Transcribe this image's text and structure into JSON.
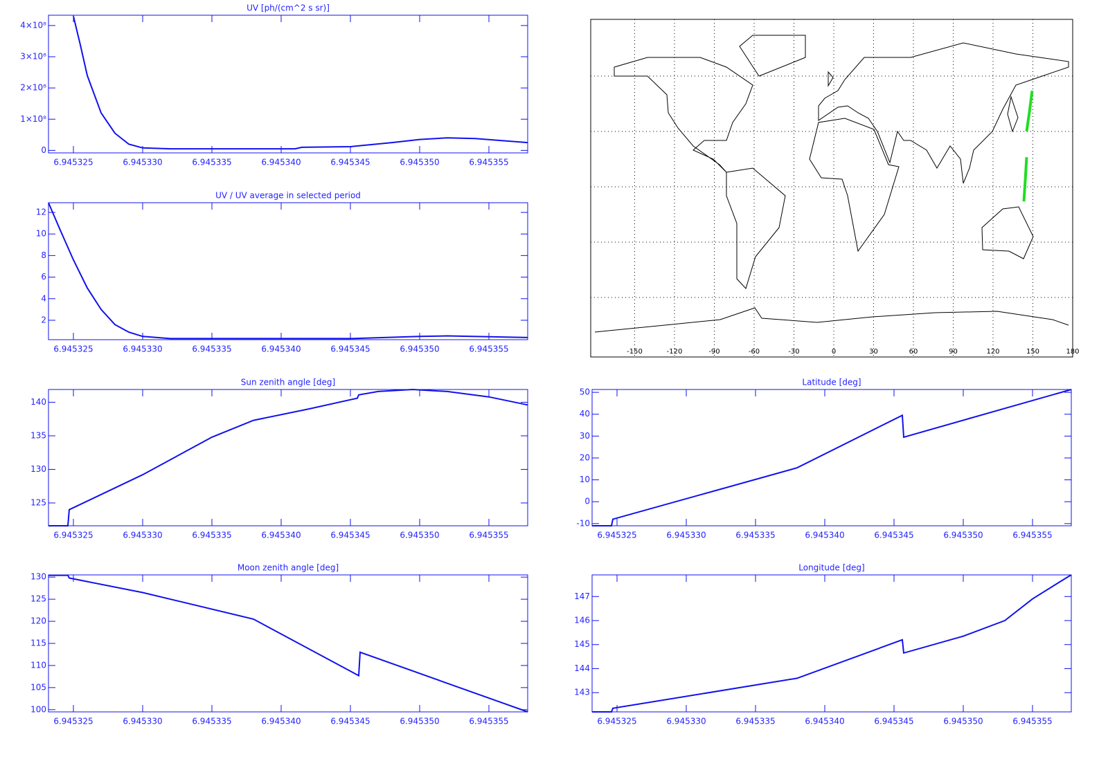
{
  "chart_data": [
    {
      "type": "line",
      "title": "UV [ph/(cm^2 s sr)]",
      "color": "#1010ee",
      "xlim": [
        6.9453232,
        6.9453578
      ],
      "ylim": [
        -8000000,
        433000000
      ],
      "xticks": [
        6.945325,
        {
          "value": 6.94533,
          "label": "6.945330"
        },
        6.945335,
        {
          "value": 6.94534,
          "label": "6.945340"
        },
        6.945345,
        {
          "value": 6.94535,
          "label": "6.945350"
        },
        6.945355
      ],
      "yticks": [
        0,
        {
          "value": 100000000,
          "label": "1×10⁸"
        },
        {
          "value": 200000000,
          "label": "2×10⁸"
        },
        {
          "value": 300000000,
          "label": "3×10⁸"
        },
        {
          "value": 400000000,
          "label": "4×10⁸"
        }
      ],
      "x": [
        6.945325,
        6.9453255,
        6.945326,
        6.945327,
        6.945328,
        6.945329,
        6.94533,
        6.945332,
        6.945341,
        6.9453415,
        6.945345,
        6.945348,
        6.94535,
        6.945352,
        6.945354,
        6.9453578
      ],
      "values": [
        430000000,
        338000000,
        240000000,
        120000000,
        55000000,
        20000000,
        8000000,
        5000000,
        5000000,
        10000000,
        12000000,
        25000000,
        35000000,
        40000000,
        38000000,
        25000000
      ]
    },
    {
      "type": "line",
      "title": "UV / UV average in selected period",
      "color": "#1010ee",
      "xlim": [
        6.9453232,
        6.9453578
      ],
      "ylim": [
        0.2,
        12.9
      ],
      "xticks": [
        6.945325,
        {
          "value": 6.94533,
          "label": "6.945330"
        },
        6.945335,
        {
          "value": 6.94534,
          "label": "6.945340"
        },
        6.945345,
        {
          "value": 6.94535,
          "label": "6.945350"
        },
        6.945355
      ],
      "yticks": [
        2,
        4,
        6,
        8,
        10,
        12
      ],
      "x": [
        6.9453232,
        6.945324,
        6.945325,
        6.945326,
        6.945327,
        6.945328,
        6.945329,
        6.94533,
        6.945332,
        6.945345,
        6.94535,
        6.945352,
        6.9453578
      ],
      "values": [
        12.9,
        10.5,
        7.6,
        5.0,
        3.0,
        1.6,
        0.9,
        0.5,
        0.3,
        0.3,
        0.5,
        0.55,
        0.4
      ]
    },
    {
      "type": "line",
      "title": "Sun zenith angle [deg]",
      "color": "#1010ee",
      "xlim": [
        6.9453232,
        6.9453578
      ],
      "ylim": [
        121.6,
        141.9
      ],
      "xticks": [
        6.945325,
        {
          "value": 6.94533,
          "label": "6.945330"
        },
        6.945335,
        {
          "value": 6.94534,
          "label": "6.945340"
        },
        6.945345,
        {
          "value": 6.94535,
          "label": "6.945350"
        },
        6.945355
      ],
      "yticks": [
        125,
        130,
        135,
        140
      ],
      "x": [
        6.9453232,
        6.9453246,
        6.9453247,
        6.94533,
        6.945335,
        6.945338,
        6.945342,
        6.9453455,
        6.9453456,
        6.945347,
        6.9453495,
        6.945352,
        6.945355,
        6.9453578
      ],
      "values": [
        121.6,
        121.6,
        124,
        129.2,
        134.8,
        137.3,
        139,
        140.6,
        141.1,
        141.6,
        141.9,
        141.6,
        140.8,
        139.6
      ]
    },
    {
      "type": "line",
      "title": "Moon zenith angle [deg]",
      "color": "#1010ee",
      "xlim": [
        6.9453232,
        6.9453578
      ],
      "ylim": [
        99.5,
        130.5
      ],
      "xticks": [
        6.945325,
        {
          "value": 6.94533,
          "label": "6.945330"
        },
        6.945335,
        {
          "value": 6.94534,
          "label": "6.945340"
        },
        6.945345,
        {
          "value": 6.94535,
          "label": "6.945350"
        },
        6.945355
      ],
      "yticks": [
        100,
        105,
        110,
        115,
        120,
        125,
        130
      ],
      "x": [
        6.9453232,
        6.9453246,
        6.9453247,
        6.94533,
        6.945338,
        6.9453456,
        6.9453457,
        6.9453578
      ],
      "values": [
        130.4,
        130.4,
        129.8,
        126.5,
        120.5,
        107.7,
        113,
        99.5
      ]
    },
    {
      "type": "map",
      "xlim": [
        -180,
        180
      ],
      "ylim": [
        -90,
        90
      ],
      "xticks": [
        -150,
        -120,
        -90,
        -60,
        -30,
        0,
        30,
        60,
        90,
        120,
        150,
        180
      ],
      "ygrid": [
        -60,
        -30,
        0,
        30,
        60
      ],
      "series": [
        {
          "color": "#22dd22",
          "x": [
            143.2,
            144.3,
            145.3
          ],
          "values": [
            -8,
            4,
            16
          ]
        },
        {
          "color": "#22dd22",
          "x": [
            145.3,
            147.5,
            149.5
          ],
          "values": [
            30,
            41,
            52
          ]
        }
      ]
    },
    {
      "type": "line",
      "title": "Latitude [deg]",
      "color": "#1010ee",
      "xlim": [
        6.9453232,
        6.9453578
      ],
      "ylim": [
        -11,
        51.3
      ],
      "xticks": [
        6.945325,
        {
          "value": 6.94533,
          "label": "6.945330"
        },
        6.945335,
        {
          "value": 6.94534,
          "label": "6.945340"
        },
        6.945345,
        {
          "value": 6.94535,
          "label": "6.945350"
        },
        6.945355
      ],
      "yticks": [
        -10,
        0,
        10,
        20,
        30,
        40,
        50
      ],
      "x": [
        6.9453232,
        6.9453246,
        6.9453247,
        6.945338,
        6.9453456,
        6.9453457,
        6.9453578
      ],
      "values": [
        -11,
        -11,
        -8,
        15.5,
        39.5,
        29.5,
        51.3
      ]
    },
    {
      "type": "line",
      "title": "Longitude [deg]",
      "color": "#1010ee",
      "xlim": [
        6.9453232,
        6.9453578
      ],
      "ylim": [
        142.2,
        147.9
      ],
      "xticks": [
        6.945325,
        {
          "value": 6.94533,
          "label": "6.945330"
        },
        6.945335,
        {
          "value": 6.94534,
          "label": "6.945340"
        },
        6.945345,
        {
          "value": 6.94535,
          "label": "6.945350"
        },
        6.945355
      ],
      "yticks": [
        143,
        144,
        145,
        146,
        147
      ],
      "x": [
        6.9453232,
        6.9453246,
        6.9453247,
        6.945338,
        6.9453456,
        6.9453457,
        6.94535,
        6.945353,
        6.945355,
        6.9453575,
        6.9453578
      ],
      "values": [
        142.2,
        142.2,
        142.35,
        143.6,
        145.2,
        144.65,
        145.35,
        146.0,
        146.9,
        147.8,
        147.9
      ]
    }
  ]
}
